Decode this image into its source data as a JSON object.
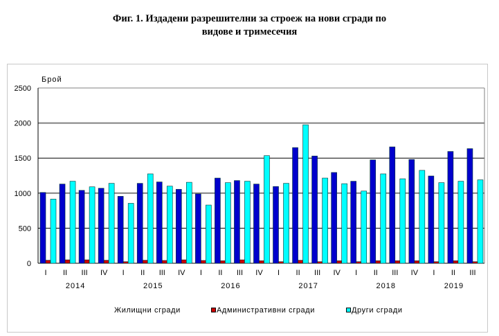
{
  "chart_data": {
    "type": "bar",
    "title": "Фиг. 1. Издадени разрешителни за строеж на нови сгради по видове и тримесечия",
    "title_lines": [
      "Фиг. 1. Издадени разрешителни за строеж на нови сгради по",
      "видове и тримесечия"
    ],
    "ylabel": "Брой",
    "xlabel": "",
    "ylim": [
      0,
      2500
    ],
    "yticks": [
      "0",
      "500",
      "1000",
      "1500",
      "2000",
      "2500"
    ],
    "grid": true,
    "legend_position": "bottom",
    "categories": [
      "I",
      "II",
      "III",
      "IV",
      "I",
      "II",
      "III",
      "IV",
      "I",
      "II",
      "III",
      "IV",
      "I",
      "II",
      "III",
      "IV",
      "I",
      "II",
      "III",
      "IV",
      "I",
      "II",
      "III"
    ],
    "years": [
      {
        "label": "2014",
        "quarters": 4
      },
      {
        "label": "2015",
        "quarters": 4
      },
      {
        "label": "2016",
        "quarters": 4
      },
      {
        "label": "2017",
        "quarters": 4
      },
      {
        "label": "2018",
        "quarters": 4
      },
      {
        "label": "2019",
        "quarters": 3
      }
    ],
    "series": [
      {
        "name": "Жилищни сгради",
        "color": "#0000cc",
        "values": [
          1010,
          1130,
          1040,
          1070,
          955,
          1140,
          1160,
          1055,
          990,
          1215,
          1180,
          1130,
          1095,
          1650,
          1530,
          1295,
          1170,
          1475,
          1660,
          1480,
          1245,
          1595,
          1635
        ]
      },
      {
        "name": "Административни сгради",
        "color": "#cc0000",
        "values": [
          43,
          49,
          49,
          43,
          23,
          43,
          40,
          49,
          40,
          36,
          49,
          36,
          23,
          43,
          23,
          36,
          23,
          36,
          36,
          36,
          23,
          36,
          23
        ]
      },
      {
        "name": "Други сгради",
        "color": "#00ffff",
        "values": [
          915,
          1170,
          1090,
          1140,
          855,
          1275,
          1100,
          1155,
          830,
          1150,
          1170,
          1535,
          1140,
          1975,
          1215,
          1135,
          1030,
          1275,
          1205,
          1325,
          1150,
          1170,
          1190
        ]
      }
    ]
  }
}
